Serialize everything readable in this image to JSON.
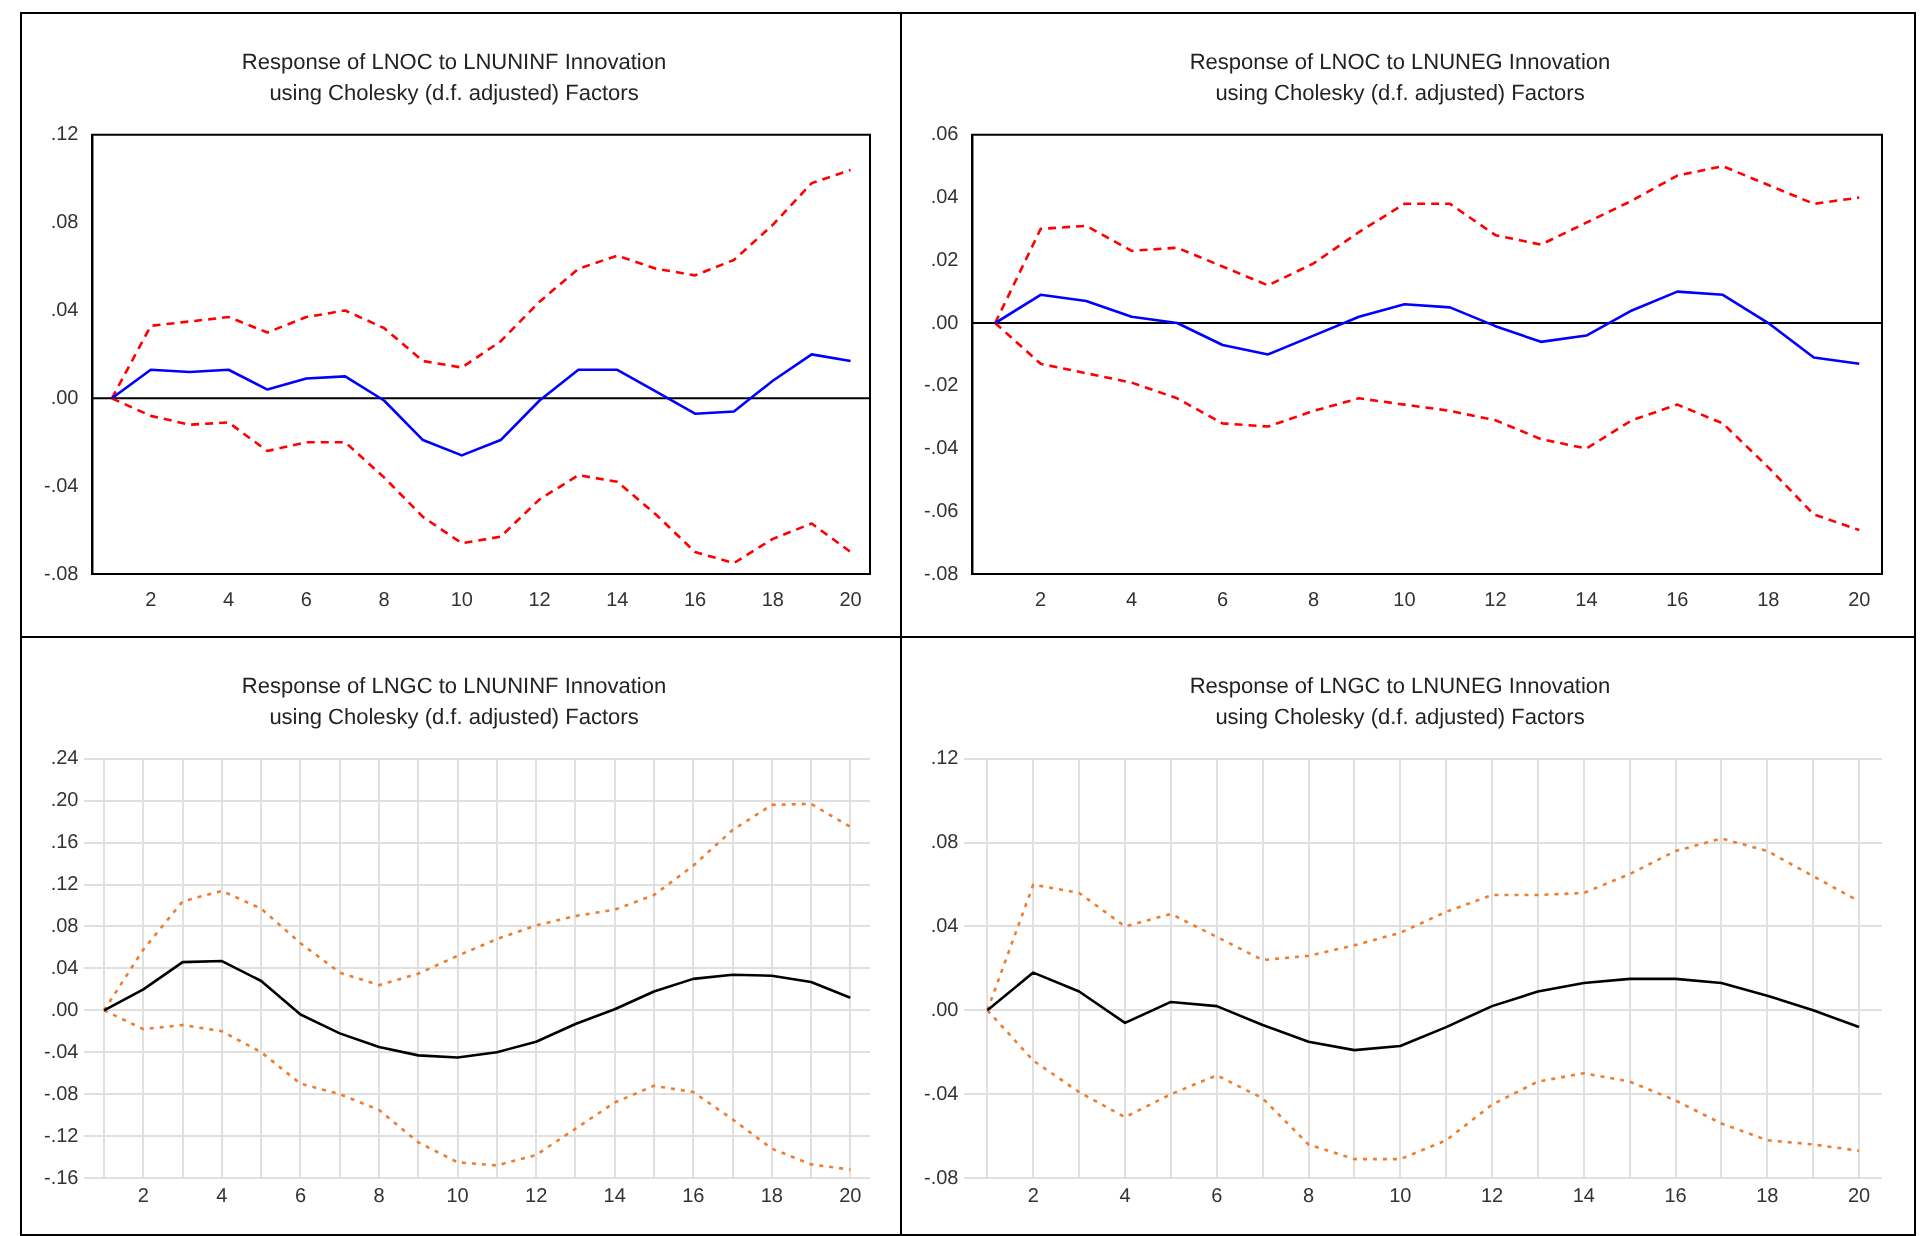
{
  "chart_data": [
    {
      "type": "line",
      "title": "Response of LNOC to LNUNINF Innovation",
      "subtitle": "using Cholesky (d.f. adjusted) Factors",
      "categories": [
        null,
        "2",
        null,
        "4",
        null,
        "6",
        null,
        "8",
        null,
        "10",
        null,
        "12",
        null,
        "14",
        null,
        "16",
        null,
        "18",
        null,
        "20"
      ],
      "series": [
        {
          "color": "#0000ff",
          "line_style": "solid",
          "values": [
            0,
            0.013,
            0.012,
            0.013,
            0.004,
            0.009,
            0.01,
            -0.001,
            -0.019,
            -0.026,
            -0.019,
            -0.001,
            0.013,
            0.013,
            0.003,
            -0.007,
            -0.006,
            0.008,
            0.02,
            0.017
          ]
        },
        {
          "color": "#ff0000",
          "line_style": "dashed",
          "values": [
            0,
            0.033,
            0.035,
            0.037,
            0.03,
            0.037,
            0.04,
            0.032,
            0.017,
            0.014,
            0.026,
            0.044,
            0.059,
            0.065,
            0.059,
            0.056,
            0.063,
            0.079,
            0.098,
            0.104
          ]
        },
        {
          "color": "#ff0000",
          "line_style": "dashed",
          "values": [
            0,
            -0.008,
            -0.012,
            -0.011,
            -0.024,
            -0.02,
            -0.02,
            -0.036,
            -0.054,
            -0.066,
            -0.063,
            -0.046,
            -0.035,
            -0.038,
            -0.053,
            -0.07,
            -0.075,
            -0.064,
            -0.057,
            -0.07
          ]
        }
      ],
      "ylim": [
        -0.08,
        0.12
      ],
      "yticks": [
        {
          "value": -0.08,
          "label": "-.08"
        },
        {
          "value": -0.04,
          "label": "-.04"
        },
        {
          "value": 0,
          "label": ".00"
        },
        {
          "value": 0.04,
          "label": ".04"
        },
        {
          "value": 0.08,
          "label": ".08"
        },
        {
          "value": 0.12,
          "label": ".12"
        }
      ],
      "ref_lines": [
        {
          "axis": "y",
          "value": 0,
          "color": "#000000"
        }
      ],
      "grid": false,
      "legend": false,
      "marker": "none"
    },
    {
      "type": "line",
      "title": "Response of LNOC to LNUNEG Innovation",
      "subtitle": "using Cholesky (d.f. adjusted) Factors",
      "categories": [
        null,
        "2",
        null,
        "4",
        null,
        "6",
        null,
        "8",
        null,
        "10",
        null,
        "12",
        null,
        "14",
        null,
        "16",
        null,
        "18",
        null,
        "20"
      ],
      "series": [
        {
          "color": "#0000ff",
          "line_style": "solid",
          "values": [
            0,
            0.009,
            0.007,
            0.002,
            0.0,
            -0.007,
            -0.01,
            -0.004,
            0.002,
            0.006,
            0.005,
            -0.001,
            -0.006,
            -0.004,
            0.004,
            0.01,
            0.009,
            0.0,
            -0.011,
            -0.013
          ]
        },
        {
          "color": "#ff0000",
          "line_style": "dashed",
          "values": [
            0,
            0.03,
            0.031,
            0.023,
            0.024,
            0.018,
            0.012,
            0.019,
            0.029,
            0.038,
            0.038,
            0.028,
            0.025,
            0.032,
            0.039,
            0.047,
            0.05,
            0.044,
            0.038,
            0.04
          ]
        },
        {
          "color": "#ff0000",
          "line_style": "dashed",
          "values": [
            0,
            -0.013,
            -0.016,
            -0.019,
            -0.024,
            -0.032,
            -0.033,
            -0.028,
            -0.024,
            -0.026,
            -0.028,
            -0.031,
            -0.037,
            -0.04,
            -0.031,
            -0.026,
            -0.032,
            -0.046,
            -0.061,
            -0.066
          ]
        }
      ],
      "ylim": [
        -0.08,
        0.06
      ],
      "yticks": [
        {
          "value": -0.08,
          "label": "-.08"
        },
        {
          "value": -0.06,
          "label": "-.06"
        },
        {
          "value": -0.04,
          "label": "-.04"
        },
        {
          "value": -0.02,
          "label": "-.02"
        },
        {
          "value": 0,
          "label": ".00"
        },
        {
          "value": 0.02,
          "label": ".02"
        },
        {
          "value": 0.04,
          "label": ".04"
        },
        {
          "value": 0.06,
          "label": ".06"
        }
      ],
      "ref_lines": [
        {
          "axis": "y",
          "value": 0,
          "color": "#000000"
        }
      ],
      "grid": false,
      "legend": false,
      "marker": "none"
    },
    {
      "type": "line",
      "title": "Response of LNGC to LNUNINF Innovation",
      "subtitle": "using Cholesky (d.f. adjusted) Factors",
      "categories": [
        null,
        "2",
        null,
        "4",
        null,
        "6",
        null,
        "8",
        null,
        "10",
        null,
        "12",
        null,
        "14",
        null,
        "16",
        null,
        "18",
        null,
        "20"
      ],
      "series": [
        {
          "color": "#000000",
          "line_style": "solid",
          "values": [
            0,
            0.02,
            0.046,
            0.047,
            0.028,
            -0.004,
            -0.022,
            -0.035,
            -0.043,
            -0.045,
            -0.04,
            -0.03,
            -0.013,
            0.001,
            0.018,
            0.03,
            0.034,
            0.033,
            0.027,
            0.012
          ]
        },
        {
          "color": "#ed7d31",
          "line_style": "dotted",
          "values": [
            0,
            0.058,
            0.104,
            0.114,
            0.097,
            0.064,
            0.036,
            0.024,
            0.035,
            0.052,
            0.068,
            0.081,
            0.09,
            0.096,
            0.11,
            0.138,
            0.172,
            0.196,
            0.197,
            0.175
          ]
        },
        {
          "color": "#ed7d31",
          "line_style": "dotted",
          "values": [
            0,
            -0.018,
            -0.014,
            -0.02,
            -0.04,
            -0.07,
            -0.08,
            -0.095,
            -0.126,
            -0.145,
            -0.148,
            -0.138,
            -0.113,
            -0.088,
            -0.072,
            -0.078,
            -0.104,
            -0.132,
            -0.147,
            -0.152
          ]
        }
      ],
      "ylim": [
        -0.16,
        0.24
      ],
      "yticks": [
        {
          "value": -0.16,
          "label": "-.16"
        },
        {
          "value": -0.12,
          "label": "-.12"
        },
        {
          "value": -0.08,
          "label": "-.08"
        },
        {
          "value": -0.04,
          "label": "-.04"
        },
        {
          "value": 0,
          "label": ".00"
        },
        {
          "value": 0.04,
          "label": ".04"
        },
        {
          "value": 0.08,
          "label": ".08"
        },
        {
          "value": 0.12,
          "label": ".12"
        },
        {
          "value": 0.16,
          "label": ".16"
        },
        {
          "value": 0.2,
          "label": ".20"
        },
        {
          "value": 0.24,
          "label": ".24"
        }
      ],
      "grid": true,
      "legend": false,
      "marker": "none"
    },
    {
      "type": "line",
      "title": "Response of LNGC to LNUNEG Innovation",
      "subtitle": "using Cholesky (d.f. adjusted) Factors",
      "categories": [
        null,
        "2",
        null,
        "4",
        null,
        "6",
        null,
        "8",
        null,
        "10",
        null,
        "12",
        null,
        "14",
        null,
        "16",
        null,
        "18",
        null,
        "20"
      ],
      "series": [
        {
          "color": "#000000",
          "line_style": "solid",
          "values": [
            0,
            0.018,
            0.009,
            -0.006,
            0.004,
            0.002,
            -0.007,
            -0.015,
            -0.019,
            -0.017,
            -0.008,
            0.002,
            0.009,
            0.013,
            0.015,
            0.015,
            0.013,
            0.007,
            0.0,
            -0.008
          ]
        },
        {
          "color": "#ed7d31",
          "line_style": "dotted",
          "values": [
            0,
            0.06,
            0.056,
            0.04,
            0.046,
            0.035,
            0.024,
            0.026,
            0.031,
            0.037,
            0.047,
            0.055,
            0.055,
            0.056,
            0.065,
            0.076,
            0.082,
            0.076,
            0.064,
            0.052
          ]
        },
        {
          "color": "#ed7d31",
          "line_style": "dotted",
          "values": [
            0,
            -0.024,
            -0.039,
            -0.051,
            -0.04,
            -0.031,
            -0.042,
            -0.064,
            -0.071,
            -0.071,
            -0.062,
            -0.045,
            -0.034,
            -0.03,
            -0.034,
            -0.043,
            -0.054,
            -0.062,
            -0.064,
            -0.067
          ]
        }
      ],
      "ylim": [
        -0.08,
        0.12
      ],
      "yticks": [
        {
          "value": -0.08,
          "label": "-.08"
        },
        {
          "value": -0.04,
          "label": "-.04"
        },
        {
          "value": 0,
          "label": ".00"
        },
        {
          "value": 0.04,
          "label": ".04"
        },
        {
          "value": 0.08,
          "label": ".08"
        },
        {
          "value": 0.12,
          "label": ".12"
        }
      ],
      "grid": true,
      "legend": false,
      "marker": "none"
    }
  ]
}
